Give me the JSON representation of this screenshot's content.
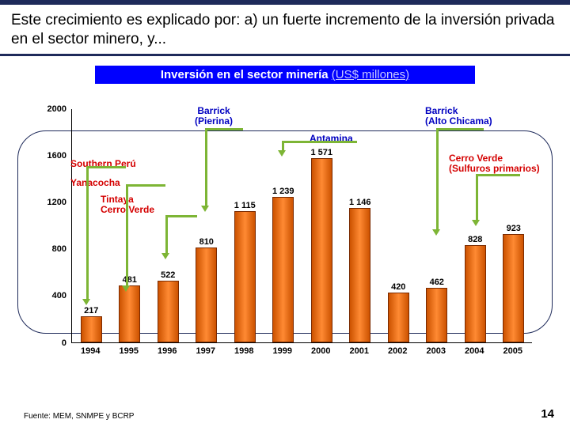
{
  "title": "Este crecimiento es explicado por: a) un fuerte incremento de la inversión privada en el sector minero, y...",
  "subtitle_main": "Inversión en el sector minería",
  "subtitle_unit": "(US$ millones)",
  "source": "Fuente: MEM, SNMPE y BCRP",
  "page": "14",
  "chart": {
    "type": "bar",
    "ylim": [
      0,
      2000
    ],
    "yticks": [
      0,
      400,
      800,
      1200,
      1600,
      2000
    ],
    "years": [
      1994,
      1995,
      1996,
      1997,
      1998,
      1999,
      2000,
      2001,
      2002,
      2003,
      2004,
      2005
    ],
    "values": [
      217,
      481,
      522,
      810,
      1115,
      1239,
      1571,
      1146,
      420,
      462,
      828,
      923
    ],
    "bar_color_dark": "#cc5200",
    "bar_color_light": "#ff8a33",
    "bar_border": "#7a2a00",
    "plot_border": "#000000",
    "bg": "#ffffff"
  },
  "callouts": {
    "c1": "Southern Perú",
    "c2": "Yanacocha",
    "c3": "Tintaya\nCerro Verde",
    "c4": "Barrick\n(Pierina)",
    "c5": "Antamina",
    "c6": "Barrick\n(Alto Chicama)",
    "c7": "Cerro Verde\n(Sulfuros primarios)"
  }
}
